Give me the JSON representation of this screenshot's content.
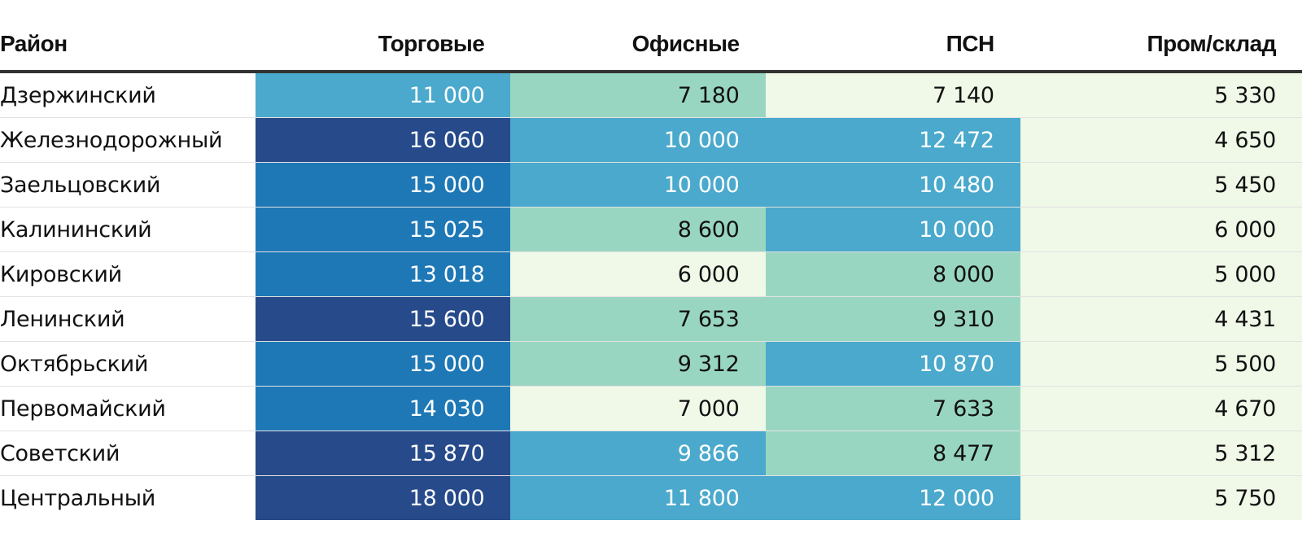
{
  "chart_data": {
    "type": "table",
    "title": "",
    "columns": [
      "Район",
      "Торговые",
      "Офисные",
      "ПСН",
      "Пром/склад"
    ],
    "rows": [
      {
        "district": "Дзержинский",
        "values": [
          "11 000",
          "7 180",
          "7 140",
          "5 330"
        ],
        "levels": [
          2,
          1,
          0,
          0
        ]
      },
      {
        "district": "Железнодорожный",
        "values": [
          "16 060",
          "10 000",
          "12 472",
          "4 650"
        ],
        "levels": [
          4,
          2,
          2,
          0
        ]
      },
      {
        "district": "Заельцовский",
        "values": [
          "15 000",
          "10 000",
          "10 480",
          "5 450"
        ],
        "levels": [
          3,
          2,
          2,
          0
        ]
      },
      {
        "district": "Калининский",
        "values": [
          "15 025",
          "8 600",
          "10 000",
          "6 000"
        ],
        "levels": [
          3,
          1,
          2,
          0
        ]
      },
      {
        "district": "Кировский",
        "values": [
          "13 018",
          "6 000",
          "8 000",
          "5 000"
        ],
        "levels": [
          3,
          0,
          1,
          0
        ]
      },
      {
        "district": "Ленинский",
        "values": [
          "15 600",
          "7 653",
          "9 310",
          "4 431"
        ],
        "levels": [
          4,
          1,
          1,
          0
        ]
      },
      {
        "district": "Октябрьский",
        "values": [
          "15 000",
          "9 312",
          "10 870",
          "5 500"
        ],
        "levels": [
          3,
          1,
          2,
          0
        ]
      },
      {
        "district": "Первомайский",
        "values": [
          "14 030",
          "7 000",
          "7 633",
          "4 670"
        ],
        "levels": [
          3,
          0,
          1,
          0
        ]
      },
      {
        "district": "Советский",
        "values": [
          "15 870",
          "9 866",
          "8 477",
          "5 312"
        ],
        "levels": [
          4,
          2,
          1,
          0
        ]
      },
      {
        "district": "Центральный",
        "values": [
          "18 000",
          "11 800",
          "12 000",
          "5 750"
        ],
        "levels": [
          4,
          2,
          2,
          0
        ]
      }
    ]
  },
  "palette": {
    "levels": [
      "#f0f9e8",
      "#99d6c1",
      "#4aa9cc",
      "#1e78b6",
      "#264a8a"
    ],
    "text_dark": "#111111",
    "text_light": "#ffffff"
  }
}
